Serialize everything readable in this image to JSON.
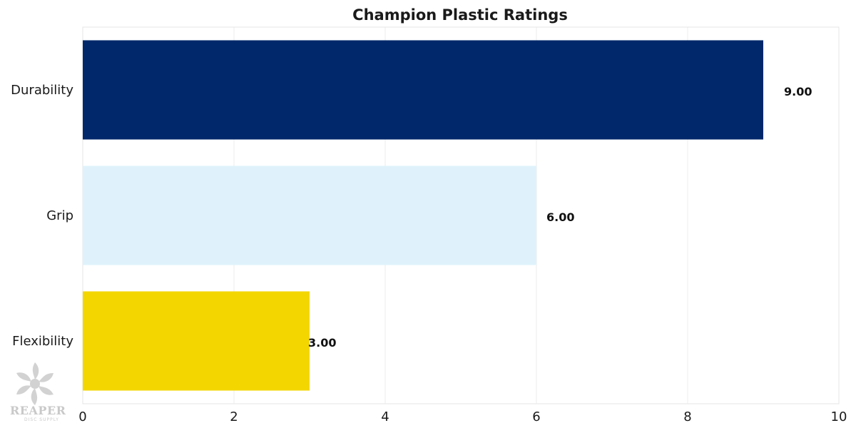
{
  "chart_data": {
    "type": "bar",
    "orientation": "horizontal",
    "title": "Champion Plastic Ratings",
    "categories": [
      "Durability",
      "Grip",
      "Flexibility"
    ],
    "values": [
      9.0,
      6.0,
      3.0
    ],
    "value_labels": [
      "9.00",
      "6.00",
      "3.00"
    ],
    "bar_colors": [
      "#00286b",
      "#dff2fb",
      "#f3d600"
    ],
    "xlim": [
      0,
      10
    ],
    "xticks": [
      0,
      2,
      4,
      6,
      8,
      10
    ],
    "xtick_labels": [
      "0",
      "2",
      "4",
      "6",
      "8",
      "10"
    ],
    "xlabel": "",
    "ylabel": "",
    "grid": true
  },
  "watermark": {
    "brand": "REAPER",
    "tagline": "DISC SUPPLY"
  }
}
